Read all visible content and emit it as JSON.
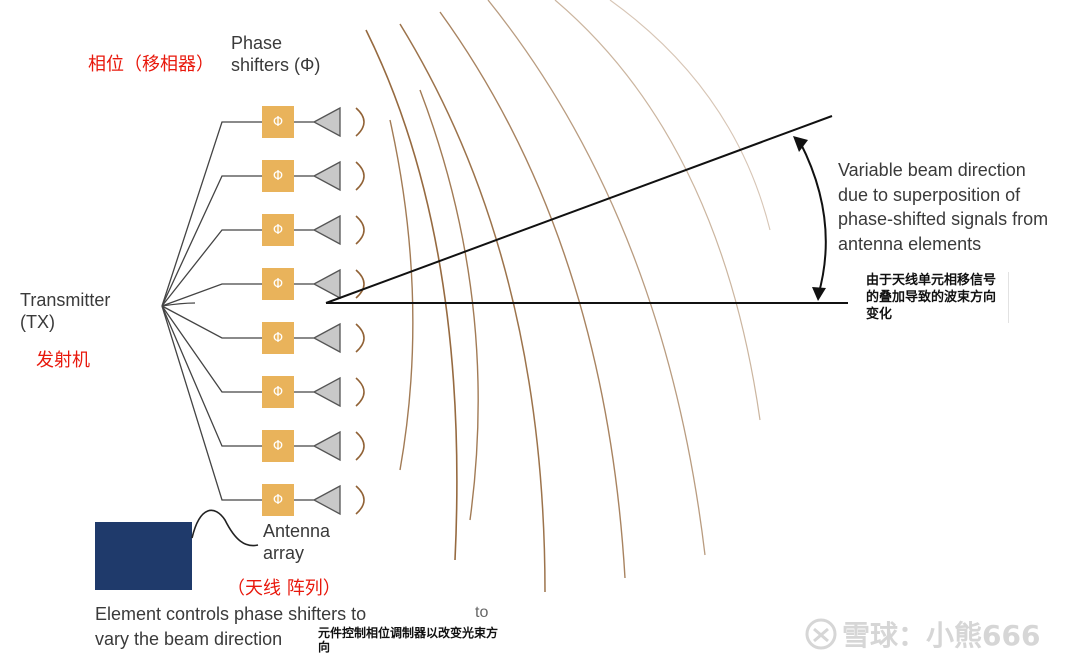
{
  "labels": {
    "phase_shifters_line1": "Phase",
    "phase_shifters_line2": "shifters (Φ)",
    "phase_shifters_cn": "相位（移相器）",
    "transmitter_line1": "Transmitter",
    "transmitter_line2": "(TX)",
    "transmitter_cn": "发射机",
    "antenna_line1": "Antenna",
    "antenna_line2": "array",
    "antenna_cn": "（天线 阵列）",
    "beam_line1": "Variable beam direction",
    "beam_line2": "due to superposition of",
    "beam_line3": "phase-shifted signals from",
    "beam_line4": "antenna elements",
    "beam_cn_line1": "由于天线单元相移信号",
    "beam_cn_line2": "的叠加导致的波束方向",
    "beam_cn_line3": "变化",
    "element_line1": "Element controls phase shifters to",
    "element_line2": "vary the beam direction",
    "element_cn_line1": "元件控制相位调制器以改变光束方",
    "element_cn_line2": "向",
    "stray_to": "to"
  },
  "phase_symbol": "Φ",
  "phase_shifter_count": 8,
  "watermark": "雪球：小熊666",
  "colors": {
    "phase_box": "#e9b35b",
    "control_box": "#1f3a6b",
    "wave": "#8b5a2b",
    "chinese_accent": "#e8180c"
  }
}
